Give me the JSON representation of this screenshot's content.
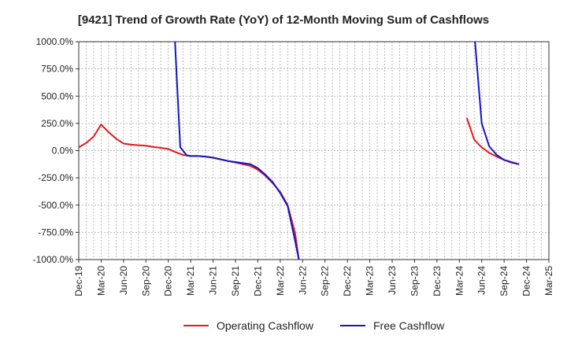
{
  "chart_data": {
    "type": "line",
    "title": "[9421]  Trend of Growth Rate (YoY) of 12-Month Moving Sum of Cashflows",
    "xlabel": "",
    "ylabel": "",
    "ylim": [
      -1000,
      1000
    ],
    "y_ticks": [
      -1000,
      -750,
      -500,
      -250,
      0,
      250,
      500,
      750,
      1000
    ],
    "y_tick_labels": [
      "-1000.0%",
      "-750.0%",
      "-500.0%",
      "-250.0%",
      "0.0%",
      "250.0%",
      "500.0%",
      "750.0%",
      "1000.0%"
    ],
    "x_tick_labels": [
      "Dec-19",
      "Mar-20",
      "Jun-20",
      "Sep-20",
      "Dec-20",
      "Mar-21",
      "Jun-21",
      "Sep-21",
      "Dec-21",
      "Mar-22",
      "Jun-22",
      "Sep-22",
      "Dec-22",
      "Mar-23",
      "Jun-23",
      "Sep-23",
      "Dec-23",
      "Mar-24",
      "Jun-24",
      "Sep-24",
      "Dec-24",
      "Mar-25"
    ],
    "grid": true,
    "legend": "bottom-center",
    "series": [
      {
        "name": "Operating Cashflow",
        "color": "#e31a1c",
        "points": [
          [
            0,
            30
          ],
          [
            1,
            70
          ],
          [
            2,
            130
          ],
          [
            3,
            240
          ],
          [
            4,
            170
          ],
          [
            5,
            110
          ],
          [
            6,
            65
          ],
          [
            7,
            55
          ],
          [
            8,
            50
          ],
          [
            9,
            45
          ],
          [
            10,
            35
          ],
          [
            11,
            25
          ],
          [
            12,
            15
          ],
          [
            13,
            -15
          ],
          [
            14,
            -40
          ],
          [
            15,
            -50
          ],
          [
            16,
            -50
          ],
          [
            17,
            -55
          ],
          [
            18,
            -65
          ],
          [
            19,
            -80
          ],
          [
            20,
            -95
          ],
          [
            21,
            -110
          ],
          [
            22,
            -125
          ],
          [
            23,
            -140
          ],
          [
            24,
            -175
          ],
          [
            25,
            -230
          ],
          [
            26,
            -300
          ],
          [
            27,
            -380
          ],
          [
            28,
            -500
          ],
          [
            29,
            -760
          ],
          [
            29.5,
            -1000
          ],
          null,
          [
            52,
            300
          ],
          [
            53,
            100
          ],
          [
            54,
            30
          ],
          [
            55,
            -20
          ],
          [
            56,
            -55
          ],
          [
            57,
            -85
          ],
          [
            58,
            -105
          ],
          [
            59,
            -125
          ]
        ]
      },
      {
        "name": "Free Cashflow",
        "color": "#1414c8",
        "points": [
          [
            12.9,
            1000
          ],
          [
            13.6,
            30
          ],
          [
            14.5,
            -45
          ],
          [
            15,
            -50
          ],
          [
            16,
            -50
          ],
          [
            17,
            -55
          ],
          [
            18,
            -65
          ],
          [
            19,
            -80
          ],
          [
            20,
            -95
          ],
          [
            21,
            -105
          ],
          [
            22,
            -115
          ],
          [
            23,
            -125
          ],
          [
            24,
            -160
          ],
          [
            25,
            -220
          ],
          [
            26,
            -290
          ],
          [
            27,
            -390
          ],
          [
            28,
            -510
          ],
          [
            29,
            -830
          ],
          [
            29.5,
            -1000
          ],
          null,
          [
            53.1,
            1000
          ],
          [
            54,
            250
          ],
          [
            55,
            40
          ],
          [
            56,
            -40
          ],
          [
            57,
            -85
          ],
          [
            58,
            -110
          ],
          [
            59,
            -125
          ]
        ]
      }
    ]
  }
}
